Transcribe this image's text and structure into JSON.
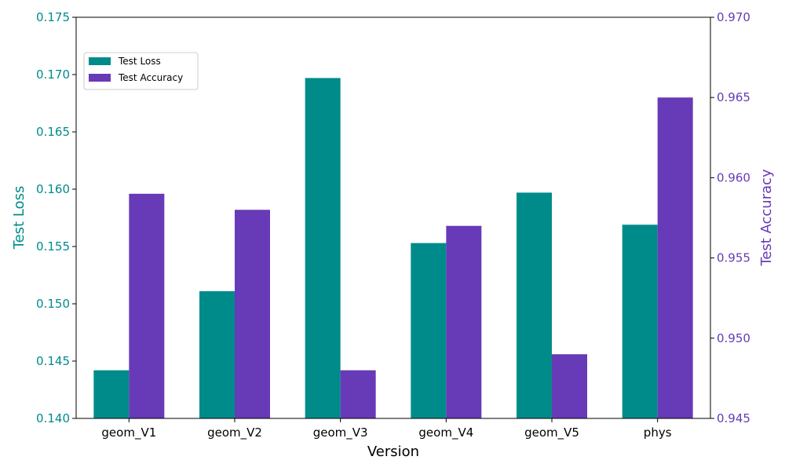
{
  "chart_data": {
    "type": "bar",
    "title": "",
    "xlabel": "Version",
    "categories": [
      "geom_V1",
      "geom_V2",
      "geom_V3",
      "geom_V4",
      "geom_V5",
      "phys"
    ],
    "series": [
      {
        "name": "Test Loss",
        "axis": "left",
        "color": "#008b8b",
        "values": [
          0.1442,
          0.1511,
          0.1697,
          0.1553,
          0.1597,
          0.1569
        ]
      },
      {
        "name": "Test Accuracy",
        "axis": "right",
        "color": "#673ab7",
        "values": [
          0.959,
          0.958,
          0.948,
          0.957,
          0.949,
          0.965
        ]
      }
    ],
    "y_left": {
      "label": "Test Loss",
      "color": "#008b8b",
      "ylim": [
        0.14,
        0.175
      ],
      "ticks": [
        0.14,
        0.145,
        0.15,
        0.155,
        0.16,
        0.165,
        0.17,
        0.175
      ],
      "tick_labels": [
        "0.140",
        "0.145",
        "0.150",
        "0.155",
        "0.160",
        "0.165",
        "0.170",
        "0.175"
      ]
    },
    "y_right": {
      "label": "Test Accuracy",
      "color": "#673ab7",
      "ylim": [
        0.945,
        0.97
      ],
      "ticks": [
        0.945,
        0.95,
        0.955,
        0.96,
        0.965,
        0.97
      ],
      "tick_labels": [
        "0.945",
        "0.950",
        "0.955",
        "0.960",
        "0.965",
        "0.970"
      ]
    },
    "grid": false,
    "legend_position": "upper-left"
  }
}
